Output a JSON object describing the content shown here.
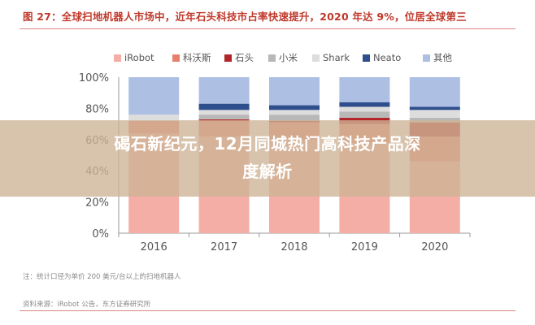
{
  "figure_title": "图 27：全球扫地机器人市场中，近年石头科技市占率快速提升，2020 年达 9%，位居全球第三",
  "note": "注：统计口径为单价 200 美元/台以上的扫地机器人",
  "source": "资料来源：iRobot 公告，东方证券研究所",
  "headline_line1": "碣石新纪元，12月同城热门高科技产品深",
  "headline_line2": "度解析",
  "colors": {
    "title": "#c0392b",
    "overlay": "#cdb496",
    "iRobot": "#f4aea6",
    "科沃斯": "#e87f6d",
    "石头": "#b2262a",
    "小米": "#b8b8b8",
    "Shark": "#dddddd",
    "Neato": "#2e4f8c",
    "其他": "#aebfe4"
  },
  "chart_data": {
    "type": "bar",
    "stacked": true,
    "categories": [
      "2016",
      "2017",
      "2018",
      "2019",
      "2020"
    ],
    "yticks": [
      "0%",
      "20%",
      "40%",
      "60%",
      "80%",
      "100%"
    ],
    "ylim": [
      0,
      100
    ],
    "legend_position": "top",
    "series": [
      {
        "name": "iRobot",
        "values": [
          64,
          62,
          60,
          58,
          46
        ]
      },
      {
        "name": "科沃斯",
        "values": [
          8,
          10,
          11,
          12,
          16
        ]
      },
      {
        "name": "石头",
        "values": [
          0,
          1,
          1,
          4,
          9
        ]
      },
      {
        "name": "小米",
        "values": [
          0,
          3,
          4,
          4,
          3
        ]
      },
      {
        "name": "Shark",
        "values": [
          4,
          3,
          3,
          3,
          5
        ]
      },
      {
        "name": "Neato",
        "values": [
          0,
          4,
          3,
          3,
          2
        ]
      },
      {
        "name": "其他",
        "values": [
          24,
          17,
          18,
          16,
          19
        ]
      }
    ]
  }
}
